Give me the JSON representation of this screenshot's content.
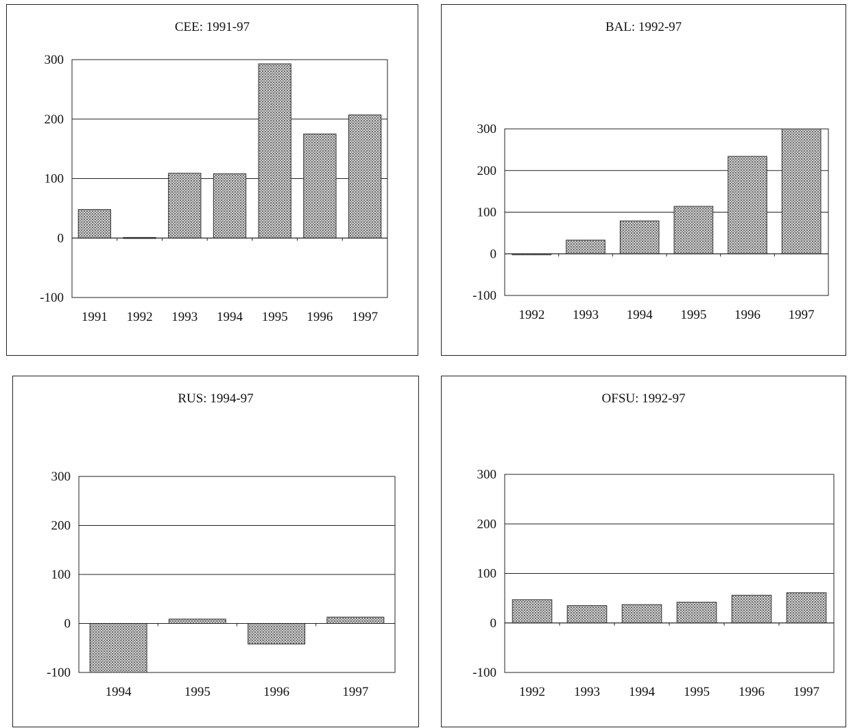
{
  "colors": {
    "bar_fill": "#b4b4b4",
    "bar_stroke": "#333333",
    "grid": "#222222"
  },
  "chart_data": [
    {
      "type": "bar",
      "title": "CEE: 1991-97",
      "categories": [
        "1991",
        "1992",
        "1993",
        "1994",
        "1995",
        "1996",
        "1997"
      ],
      "values": [
        48,
        1,
        109,
        108,
        293,
        175,
        207
      ],
      "yticks": [
        "300",
        "200",
        "100",
        "0",
        "-100"
      ],
      "ylim": [
        -100,
        300
      ],
      "grid": true
    },
    {
      "type": "bar",
      "title": "BAL: 1992-97",
      "categories": [
        "1992",
        "1993",
        "1994",
        "1995",
        "1996",
        "1997"
      ],
      "values": [
        -2,
        33,
        79,
        114,
        234,
        300
      ],
      "yticks": [
        "300",
        "200",
        "100",
        "0",
        "-100"
      ],
      "ylim": [
        -100,
        300
      ],
      "grid": true
    },
    {
      "type": "bar",
      "title": "RUS: 1994-97",
      "categories": [
        "1994",
        "1995",
        "1996",
        "1997"
      ],
      "values": [
        -100,
        9,
        -42,
        13
      ],
      "yticks": [
        "300",
        "200",
        "100",
        "0",
        "-100"
      ],
      "ylim": [
        -100,
        300
      ],
      "grid": true
    },
    {
      "type": "bar",
      "title": "OFSU: 1992-97",
      "categories": [
        "1992",
        "1993",
        "1994",
        "1995",
        "1996",
        "1997"
      ],
      "values": [
        47,
        35,
        37,
        42,
        56,
        61
      ],
      "yticks": [
        "300",
        "200",
        "100",
        "0",
        "-100"
      ],
      "ylim": [
        -100,
        300
      ],
      "grid": true
    }
  ]
}
